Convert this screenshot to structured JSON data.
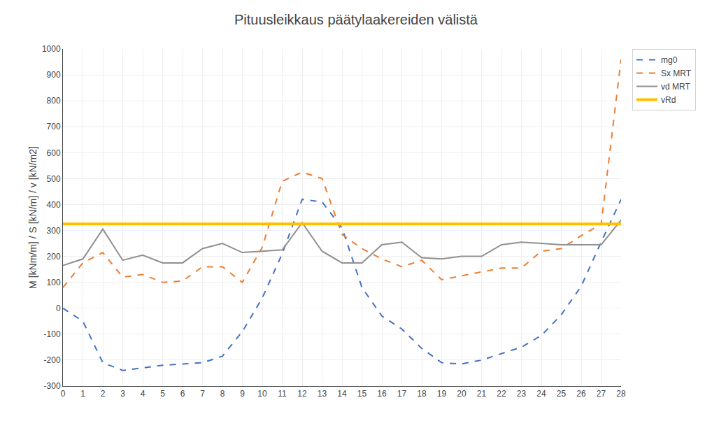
{
  "chart_data": {
    "type": "line",
    "title": "Pituusleikkaus päätylaakereiden välistä",
    "ylabel": "M [kNm/m] / S [kN/m] / v [kN/m2]",
    "x": [
      0,
      1,
      2,
      3,
      4,
      5,
      6,
      7,
      8,
      9,
      10,
      11,
      12,
      13,
      14,
      15,
      16,
      17,
      18,
      19,
      20,
      21,
      22,
      23,
      24,
      25,
      26,
      27,
      28
    ],
    "series": [
      {
        "name": "mg0",
        "color": "#4472C4",
        "line_style": "dashed",
        "values": [
          0,
          -50,
          -210,
          -240,
          -230,
          -220,
          -215,
          -210,
          -185,
          -90,
          40,
          210,
          420,
          410,
          310,
          80,
          -30,
          -80,
          -155,
          -210,
          -215,
          -200,
          -175,
          -150,
          -105,
          -25,
          85,
          255,
          420
        ]
      },
      {
        "name": "Sx MRT",
        "color": "#ED7D31",
        "line_style": "dashed",
        "values": [
          80,
          175,
          215,
          120,
          130,
          100,
          105,
          160,
          160,
          100,
          235,
          490,
          525,
          500,
          285,
          230,
          190,
          160,
          185,
          110,
          125,
          140,
          155,
          155,
          220,
          230,
          280,
          325,
          960
        ]
      },
      {
        "name": "vd MRT",
        "color": "#909090",
        "line_style": "solid",
        "values": [
          165,
          190,
          305,
          185,
          205,
          175,
          175,
          230,
          250,
          215,
          220,
          225,
          330,
          220,
          175,
          175,
          245,
          255,
          195,
          190,
          200,
          200,
          245,
          255,
          250,
          245,
          245,
          245,
          340
        ]
      },
      {
        "name": "vRd",
        "color": "#FFC000",
        "line_style": "solid",
        "type": "hline",
        "value": 325
      }
    ],
    "xlim": [
      0,
      28
    ],
    "ylim": [
      -300,
      1000
    ],
    "xticks": [
      0,
      1,
      2,
      3,
      4,
      5,
      6,
      7,
      8,
      9,
      10,
      11,
      12,
      13,
      14,
      15,
      16,
      17,
      18,
      19,
      20,
      21,
      22,
      23,
      24,
      25,
      26,
      27,
      28
    ],
    "yticks": [
      -300,
      -200,
      -100,
      0,
      100,
      200,
      300,
      400,
      500,
      600,
      700,
      800,
      900,
      1000
    ],
    "grid": true,
    "legend": "upper right"
  }
}
